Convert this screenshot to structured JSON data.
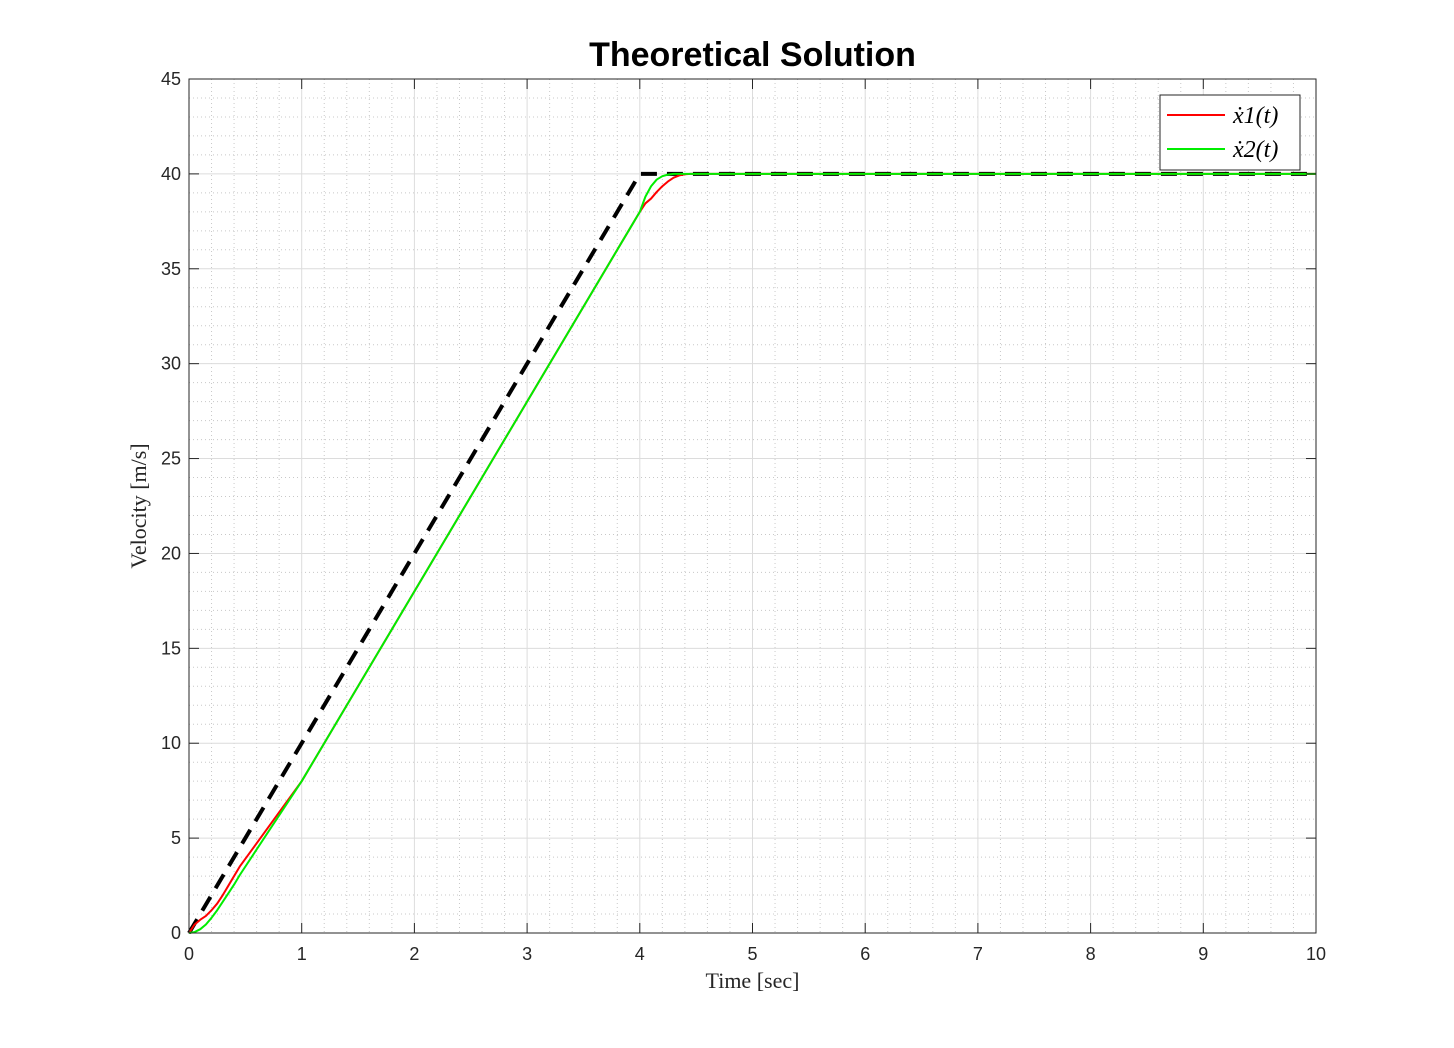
{
  "chart_data": {
    "type": "line",
    "title": "Theoretical Solution",
    "xlabel": "Time [sec]",
    "ylabel": "Velocity [m/s]",
    "xlim": [
      0,
      10
    ],
    "ylim": [
      0,
      45
    ],
    "xticks": [
      0,
      1,
      2,
      3,
      4,
      5,
      6,
      7,
      8,
      9,
      10
    ],
    "yticks": [
      0,
      5,
      10,
      15,
      20,
      25,
      30,
      35,
      40,
      45
    ],
    "grid": true,
    "minor_grid": true,
    "legend_position": "top-right",
    "series": [
      {
        "name": "ẋ1(t)",
        "color": "#ff0000",
        "style": "solid",
        "x": [
          0,
          0.05,
          0.1,
          0.15,
          0.2,
          0.25,
          0.3,
          0.35,
          0.4,
          0.45,
          1,
          2,
          3,
          4,
          4.05,
          4.1,
          4.15,
          4.2,
          4.25,
          4.3,
          4.35,
          4.4,
          4.45,
          4.5,
          5,
          6,
          7,
          8,
          9,
          10
        ],
        "y": [
          0,
          0.45,
          0.7,
          0.9,
          1.2,
          1.55,
          2.0,
          2.5,
          3.0,
          3.5,
          8.0,
          18.0,
          28.0,
          38.0,
          38.45,
          38.7,
          39.05,
          39.35,
          39.6,
          39.8,
          39.92,
          39.98,
          40.0,
          40.0,
          40.0,
          40.0,
          40.0,
          40.0,
          40.0,
          40.0
        ]
      },
      {
        "name": "ẋ2(t)",
        "color": "#00ee00",
        "style": "solid",
        "x": [
          0,
          0.05,
          0.1,
          0.15,
          0.2,
          0.25,
          0.3,
          0.35,
          0.4,
          0.45,
          1,
          2,
          3,
          4,
          4.05,
          4.1,
          4.15,
          4.2,
          4.25,
          4.3,
          4.35,
          4.4,
          4.45,
          4.5,
          5,
          6,
          7,
          8,
          9,
          10
        ],
        "y": [
          0,
          0.05,
          0.2,
          0.45,
          0.8,
          1.2,
          1.65,
          2.1,
          2.55,
          3.05,
          8.0,
          18.0,
          28.0,
          38.0,
          38.8,
          39.35,
          39.7,
          39.88,
          39.96,
          40.0,
          40.0,
          40.0,
          40.0,
          40.0,
          40.0,
          40.0,
          40.0,
          40.0,
          40.0,
          40.0
        ]
      },
      {
        "name": "",
        "color": "#000000",
        "style": "dashed",
        "x": [
          0,
          4,
          4.13,
          10
        ],
        "y": [
          0,
          40,
          40,
          40
        ]
      }
    ]
  }
}
